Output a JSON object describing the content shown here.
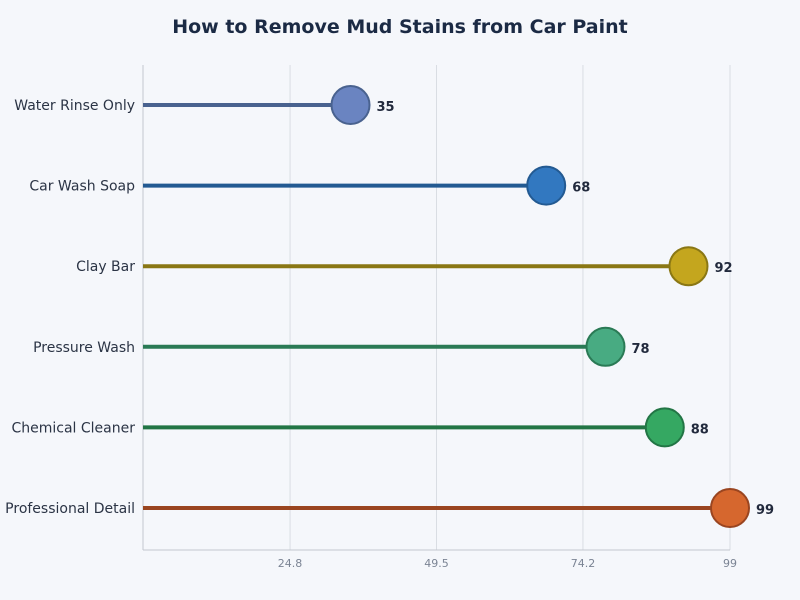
{
  "chart_data": {
    "type": "lollipop",
    "title": "How to Remove Mud Stains from Car Paint",
    "orientation": "horizontal",
    "categories": [
      "Water Rinse Only",
      "Car Wash Soap",
      "Clay Bar",
      "Pressure Wash",
      "Chemical Cleaner",
      "Professional Detail"
    ],
    "values": [
      35,
      68,
      92,
      78,
      88,
      99
    ],
    "colors": {
      "fill": [
        "#6a84c1",
        "#3278c0",
        "#c4a61e",
        "#48ab82",
        "#35a862",
        "#d6672e"
      ],
      "stroke": [
        "#49628f",
        "#235a92",
        "#8a7714",
        "#2a7a55",
        "#227545",
        "#9a4520"
      ]
    },
    "xlim": [
      0,
      99
    ],
    "xticks": [
      "24.8",
      "49.5",
      "74.2",
      "99"
    ],
    "xtick_values": [
      24.8,
      49.5,
      74.2,
      99
    ],
    "grid": "vertical",
    "xlabel": "",
    "ylabel": ""
  }
}
